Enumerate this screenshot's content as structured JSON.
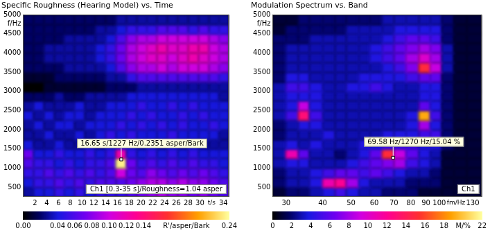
{
  "chart_data": [
    {
      "type": "heatmap",
      "title": "Specific Roughness (Hearing Model) vs. Time",
      "x_label": "t/s",
      "y_label": "f/Hz",
      "xlim": [
        0,
        35
      ],
      "ylim": [
        250,
        5000
      ],
      "xticks": [
        2,
        4,
        6,
        8,
        10,
        12,
        14,
        16,
        18,
        20,
        22,
        24,
        26,
        28,
        30,
        34
      ],
      "yticks": [
        500,
        1000,
        1500,
        2000,
        2500,
        3000,
        3500,
        4000,
        4500,
        5000
      ],
      "x_edges": [
        0,
        1.75,
        3.5,
        5.25,
        7,
        8.75,
        10.5,
        12.25,
        14,
        15.75,
        17.5,
        19.25,
        21,
        22.75,
        24.5,
        26.25,
        28,
        29.75,
        31.5,
        33.25,
        35
      ],
      "y_edges": [
        250,
        500,
        750,
        1000,
        1250,
        1500,
        1750,
        2000,
        2250,
        2500,
        2750,
        3000,
        3250,
        3500,
        3750,
        4000,
        4250,
        4500,
        4750,
        5000
      ],
      "cells": [
        [
          0.03,
          0.04,
          0.04,
          0.05,
          0.04,
          0.05,
          0.04,
          0.05,
          0.05,
          0.05,
          0.06,
          0.07,
          0.08,
          0.09,
          0.08,
          0.08,
          0.07,
          0.08,
          0.07,
          0.06
        ],
        [
          0.04,
          0.05,
          0.05,
          0.06,
          0.05,
          0.06,
          0.05,
          0.06,
          0.06,
          0.06,
          0.07,
          0.08,
          0.09,
          0.09,
          0.08,
          0.09,
          0.08,
          0.08,
          0.07,
          0.06
        ],
        [
          0.05,
          0.05,
          0.06,
          0.05,
          0.06,
          0.05,
          0.06,
          0.05,
          0.06,
          0.1,
          0.07,
          0.06,
          0.08,
          0.07,
          0.06,
          0.07,
          0.06,
          0.07,
          0.06,
          0.05
        ],
        [
          0.06,
          0.05,
          0.05,
          0.04,
          0.05,
          0.04,
          0.05,
          0.05,
          0.06,
          0.2351,
          0.07,
          0.05,
          0.06,
          0.05,
          0.06,
          0.05,
          0.06,
          0.05,
          0.05,
          0.04
        ],
        [
          0.07,
          0.04,
          0.04,
          0.05,
          0.04,
          0.04,
          0.05,
          0.04,
          0.05,
          0.12,
          0.05,
          0.04,
          0.05,
          0.04,
          0.05,
          0.04,
          0.05,
          0.04,
          0.04,
          0.04
        ],
        [
          0.04,
          0.03,
          0.03,
          0.04,
          0.03,
          0.03,
          0.04,
          0.03,
          0.04,
          0.05,
          0.04,
          0.03,
          0.04,
          0.03,
          0.04,
          0.03,
          0.04,
          0.03,
          0.03,
          0.03
        ],
        [
          0.03,
          0.03,
          0.04,
          0.03,
          0.03,
          0.04,
          0.03,
          0.04,
          0.05,
          0.04,
          0.05,
          0.04,
          0.04,
          0.04,
          0.05,
          0.04,
          0.04,
          0.04,
          0.04,
          0.03
        ],
        [
          0.03,
          0.04,
          0.03,
          0.04,
          0.04,
          0.03,
          0.04,
          0.04,
          0.04,
          0.05,
          0.04,
          0.05,
          0.04,
          0.05,
          0.04,
          0.05,
          0.04,
          0.04,
          0.05,
          0.04
        ],
        [
          0.04,
          0.03,
          0.04,
          0.03,
          0.04,
          0.04,
          0.03,
          0.04,
          0.04,
          0.04,
          0.05,
          0.04,
          0.05,
          0.04,
          0.04,
          0.05,
          0.04,
          0.05,
          0.04,
          0.04
        ],
        [
          0.03,
          0.04,
          0.03,
          0.03,
          0.03,
          0.04,
          0.03,
          0.03,
          0.04,
          0.04,
          0.04,
          0.05,
          0.04,
          0.04,
          0.05,
          0.04,
          0.05,
          0.04,
          0.04,
          0.04
        ],
        [
          0.02,
          0.02,
          0.02,
          0.03,
          0.02,
          0.02,
          0.03,
          0.03,
          0.03,
          0.03,
          0.04,
          0.04,
          0.04,
          0.04,
          0.04,
          0.04,
          0.04,
          0.04,
          0.04,
          0.03
        ],
        [
          0.0,
          0.0,
          0.01,
          0.01,
          0.01,
          0.01,
          0.01,
          0.01,
          0.02,
          0.02,
          0.02,
          0.03,
          0.03,
          0.03,
          0.03,
          0.03,
          0.03,
          0.03,
          0.03,
          0.03
        ],
        [
          0.01,
          0.01,
          0.01,
          0.02,
          0.02,
          0.02,
          0.02,
          0.02,
          0.03,
          0.03,
          0.05,
          0.06,
          0.06,
          0.06,
          0.06,
          0.06,
          0.06,
          0.06,
          0.06,
          0.05
        ],
        [
          0.02,
          0.02,
          0.02,
          0.02,
          0.03,
          0.03,
          0.03,
          0.03,
          0.04,
          0.06,
          0.08,
          0.09,
          0.09,
          0.1,
          0.09,
          0.1,
          0.1,
          0.1,
          0.09,
          0.08
        ],
        [
          0.02,
          0.02,
          0.03,
          0.03,
          0.03,
          0.03,
          0.03,
          0.04,
          0.05,
          0.07,
          0.09,
          0.1,
          0.11,
          0.11,
          0.1,
          0.11,
          0.12,
          0.11,
          0.1,
          0.09
        ],
        [
          0.02,
          0.02,
          0.03,
          0.03,
          0.03,
          0.03,
          0.03,
          0.04,
          0.05,
          0.07,
          0.09,
          0.1,
          0.11,
          0.12,
          0.11,
          0.11,
          0.12,
          0.12,
          0.1,
          0.09
        ],
        [
          0.02,
          0.02,
          0.02,
          0.02,
          0.03,
          0.03,
          0.03,
          0.03,
          0.04,
          0.06,
          0.08,
          0.09,
          0.09,
          0.1,
          0.1,
          0.1,
          0.1,
          0.1,
          0.09,
          0.08
        ],
        [
          0.02,
          0.02,
          0.02,
          0.02,
          0.02,
          0.02,
          0.02,
          0.03,
          0.03,
          0.04,
          0.05,
          0.05,
          0.05,
          0.06,
          0.06,
          0.06,
          0.05,
          0.06,
          0.05,
          0.05
        ],
        [
          0.02,
          0.02,
          0.02,
          0.02,
          0.02,
          0.02,
          0.02,
          0.02,
          0.02,
          0.03,
          0.03,
          0.03,
          0.03,
          0.03,
          0.03,
          0.03,
          0.03,
          0.03,
          0.03,
          0.03
        ]
      ],
      "colorbar": {
        "label": "R'/asper/Bark",
        "range": [
          0,
          0.24
        ],
        "ticks": [
          {
            "value": 0,
            "label": "0.00"
          },
          {
            "value": 0.04,
            "label": "0.04"
          },
          {
            "value": 0.06,
            "label": "0.06"
          },
          {
            "value": 0.08,
            "label": "0.08"
          },
          {
            "value": 0.1,
            "label": "0.10"
          },
          {
            "value": 0.12,
            "label": "0.12"
          },
          {
            "value": 0.14,
            "label": "0.14"
          },
          {
            "value": 0.24,
            "label": "0.24"
          }
        ]
      },
      "annotation": {
        "text": "16.65 s/1227 Hz/0.2351 asper/Bark",
        "x": 16.65,
        "y": 1227
      },
      "info_box": "Ch1 [0.3-35 s]/Roughness=1.04 asper"
    },
    {
      "type": "heatmap",
      "title": "Modulation Spectrum vs. Band",
      "x_label": "fm/Hz",
      "y_label": "f/Hz",
      "log": "x",
      "xlim": [
        27,
        140
      ],
      "ylim": [
        250,
        5000
      ],
      "xticks": [
        30,
        40,
        50,
        60,
        70,
        80,
        90,
        100,
        130
      ],
      "yticks": [
        500,
        1000,
        1500,
        2000,
        2500,
        3000,
        3500,
        4000,
        4500,
        5000
      ],
      "x_edges": [
        27,
        30,
        33,
        36,
        40,
        44,
        48,
        53,
        58,
        64,
        70,
        77,
        85,
        93,
        102,
        112,
        124,
        140
      ],
      "y_edges": [
        250,
        500,
        750,
        1000,
        1250,
        1500,
        1750,
        2000,
        2250,
        2500,
        2750,
        3000,
        3250,
        3500,
        3750,
        4000,
        4250,
        4500,
        4750,
        5000
      ],
      "cells": [
        [
          1,
          2,
          2,
          3,
          4,
          5,
          4,
          3,
          3,
          2,
          2,
          2,
          1,
          1,
          1,
          1,
          1
        ],
        [
          2,
          3,
          3,
          4,
          11,
          12,
          8,
          4,
          3,
          3,
          3,
          2,
          2,
          2,
          1,
          1,
          1
        ],
        [
          2,
          3,
          3,
          4,
          5,
          6,
          6,
          5,
          6,
          5,
          4,
          3,
          3,
          2,
          1,
          1,
          1
        ],
        [
          3,
          4,
          4,
          3,
          3,
          3,
          4,
          5,
          6,
          7,
          8,
          5,
          4,
          3,
          1,
          1,
          1
        ],
        [
          3,
          11,
          6,
          3,
          3,
          2,
          3,
          4,
          6,
          15.04,
          9,
          6,
          4,
          3,
          1,
          1,
          1
        ],
        [
          3,
          4,
          3,
          4,
          3,
          3,
          3,
          4,
          4,
          5,
          5,
          5,
          4,
          4,
          2,
          1,
          1
        ],
        [
          2,
          3,
          3,
          3,
          4,
          3,
          3,
          3,
          3,
          4,
          4,
          4,
          5,
          5,
          2,
          1,
          1
        ],
        [
          2,
          3,
          4,
          4,
          3,
          3,
          3,
          3,
          3,
          3,
          3,
          4,
          8,
          4,
          2,
          1,
          1
        ],
        [
          3,
          5,
          13,
          5,
          3,
          3,
          3,
          3,
          3,
          3,
          3,
          4,
          19,
          5,
          2,
          1,
          1
        ],
        [
          3,
          4,
          9,
          4,
          3,
          3,
          3,
          3,
          3,
          3,
          3,
          3,
          6,
          4,
          2,
          1,
          1
        ],
        [
          3,
          4,
          4,
          4,
          3,
          3,
          3,
          3,
          3,
          3,
          3,
          3,
          4,
          4,
          2,
          1,
          1
        ],
        [
          3,
          5,
          5,
          4,
          3,
          3,
          4,
          4,
          5,
          4,
          3,
          3,
          4,
          4,
          2,
          1,
          1
        ],
        [
          2,
          4,
          4,
          3,
          3,
          3,
          3,
          4,
          4,
          4,
          4,
          5,
          6,
          6,
          2,
          1,
          1
        ],
        [
          2,
          3,
          3,
          3,
          3,
          3,
          3,
          3,
          3,
          4,
          5,
          7,
          15,
          9,
          3,
          1,
          1
        ],
        [
          2,
          3,
          3,
          3,
          3,
          3,
          3,
          3,
          4,
          5,
          6,
          8,
          10,
          8,
          3,
          1,
          1
        ],
        [
          2,
          3,
          3,
          3,
          3,
          3,
          3,
          3,
          4,
          5,
          6,
          7,
          8,
          7,
          3,
          1,
          1
        ],
        [
          2,
          2,
          2,
          3,
          3,
          3,
          3,
          3,
          3,
          4,
          5,
          6,
          6,
          5,
          2,
          1,
          1
        ],
        [
          1,
          2,
          2,
          2,
          2,
          2,
          3,
          3,
          3,
          3,
          4,
          4,
          4,
          4,
          2,
          1,
          1
        ],
        [
          1,
          1,
          2,
          2,
          2,
          2,
          2,
          2,
          2,
          3,
          3,
          3,
          3,
          3,
          2,
          1,
          1
        ]
      ],
      "colorbar": {
        "label": "M/%",
        "range": [
          0,
          22
        ],
        "ticks": [
          0,
          2,
          4,
          6,
          8,
          10,
          12,
          14,
          16,
          18,
          22
        ]
      },
      "annotation": {
        "text": "69.58 Hz/1270 Hz/15.04 %",
        "x": 69.58,
        "y": 1270
      },
      "info_box": "Ch1"
    }
  ]
}
